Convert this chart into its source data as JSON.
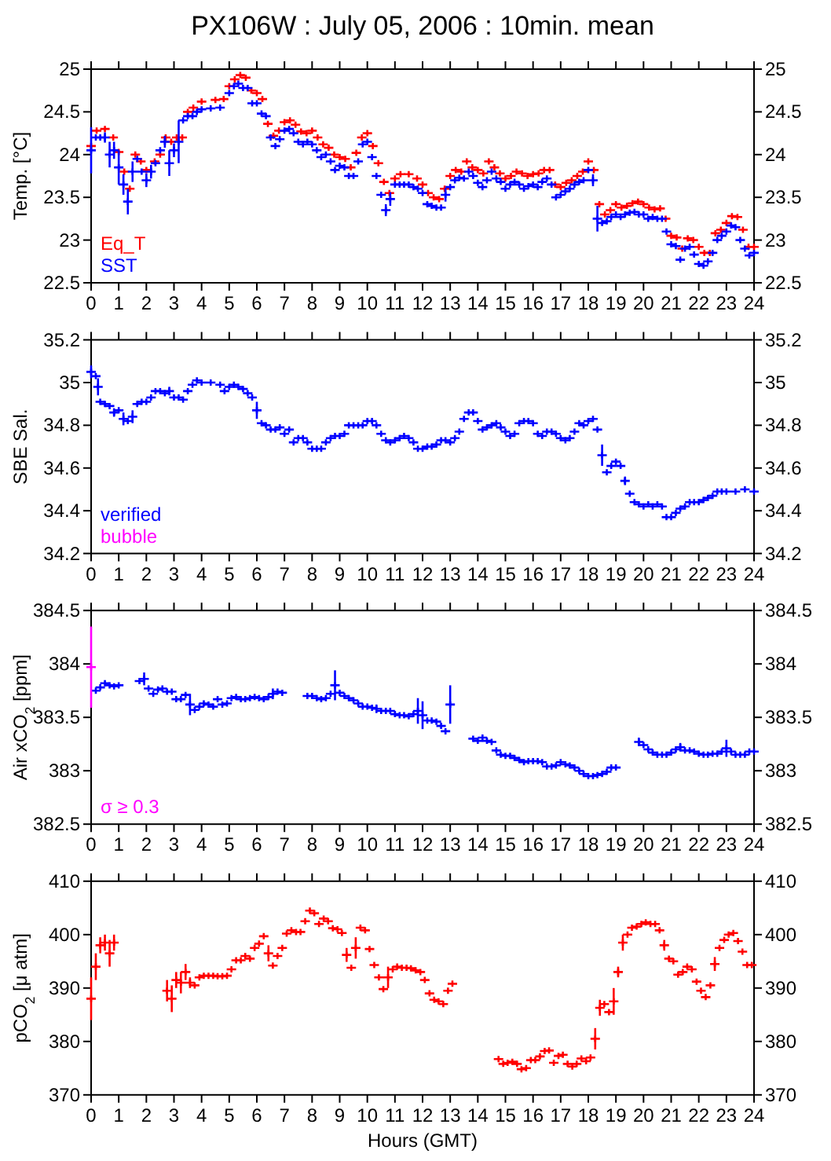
{
  "chart_data": [
    {
      "type": "scatter",
      "title": "PX106W : July 05, 2006 : 10min. mean",
      "ylabel": "Temp. [°C]",
      "xlim": [
        0,
        24
      ],
      "xticks": [
        0,
        1,
        2,
        3,
        4,
        5,
        6,
        7,
        8,
        9,
        10,
        11,
        12,
        13,
        14,
        15,
        16,
        17,
        18,
        19,
        20,
        21,
        22,
        23,
        24
      ],
      "ylim": [
        22.5,
        25
      ],
      "yticks": [
        22.5,
        23,
        23.5,
        24,
        24.5,
        25
      ],
      "y2lim": [
        22.5,
        25
      ],
      "y2ticks": [
        22.5,
        23,
        23.5,
        24,
        24.5,
        25
      ],
      "grid": false,
      "legend": "bottom left",
      "marker": "cross",
      "series": [
        {
          "name": "Eq_T",
          "color": "#ff0000",
          "x": [
            0,
            0.2,
            0.5,
            0.8,
            1,
            1.2,
            1.4,
            1.6,
            1.8,
            2,
            2.3,
            2.5,
            2.7,
            2.9,
            3.1,
            3.3,
            3.5,
            3.7,
            4,
            4.5,
            4.8,
            5,
            5.2,
            5.4,
            5.6,
            5.8,
            6,
            6.2,
            6.4,
            6.6,
            6.8,
            7,
            7.2,
            7.4,
            7.6,
            7.8,
            8,
            8.2,
            8.4,
            8.6,
            8.8,
            9,
            9.2,
            9.4,
            9.6,
            9.8,
            10,
            10.2,
            10.4,
            10.6,
            10.8,
            11,
            11.2,
            11.5,
            11.8,
            12,
            12.2,
            12.4,
            12.6,
            12.8,
            13,
            13.2,
            13.4,
            13.6,
            13.8,
            14,
            14.2,
            14.4,
            14.6,
            14.8,
            15,
            15.2,
            15.4,
            15.6,
            15.8,
            16,
            16.2,
            16.4,
            16.6,
            16.8,
            17,
            17.2,
            17.4,
            17.6,
            17.8,
            18,
            18.2,
            18.4,
            18.6,
            18.8,
            19,
            19.2,
            19.4,
            19.6,
            19.8,
            20,
            20.2,
            20.4,
            20.6,
            20.8,
            21,
            21.2,
            21.4,
            21.6,
            21.8,
            22,
            22.2,
            22.4,
            22.6,
            22.8,
            23,
            23.2,
            23.4,
            23.6,
            23.8,
            24
          ],
          "values": [
            24.1,
            24.28,
            24.3,
            24.2,
            24.03,
            23.8,
            23.6,
            24.0,
            23.92,
            23.82,
            23.92,
            24.0,
            24.2,
            24.15,
            24.2,
            24.2,
            24.5,
            24.55,
            24.62,
            24.64,
            24.65,
            24.8,
            24.88,
            24.93,
            24.9,
            24.75,
            24.72,
            24.65,
            24.36,
            24.22,
            24.28,
            24.38,
            24.4,
            24.35,
            24.27,
            24.25,
            24.28,
            24.2,
            24.12,
            24.08,
            24.0,
            23.97,
            23.95,
            23.85,
            24.02,
            24.2,
            24.25,
            24.1,
            23.9,
            23.68,
            23.55,
            23.72,
            23.77,
            23.77,
            23.72,
            23.65,
            23.55,
            23.5,
            23.48,
            23.6,
            23.75,
            23.82,
            23.8,
            23.92,
            23.85,
            23.82,
            23.78,
            23.92,
            23.85,
            23.78,
            23.72,
            23.75,
            23.8,
            23.78,
            23.75,
            23.77,
            23.78,
            23.82,
            23.82,
            23.65,
            23.62,
            23.67,
            23.7,
            23.75,
            23.8,
            23.92,
            23.82,
            23.42,
            23.3,
            23.35,
            23.42,
            23.38,
            23.4,
            23.43,
            23.45,
            23.42,
            23.38,
            23.36,
            23.37,
            23.25,
            23.05,
            23.03,
            22.9,
            23.02,
            23.0,
            22.92,
            22.85,
            22.85,
            23.08,
            23.12,
            23.2,
            23.28,
            23.27,
            23.12,
            22.92,
            22.92
          ]
        },
        {
          "name": "SST",
          "color": "#0000ff",
          "x": [
            0,
            0.17,
            0.33,
            0.5,
            0.67,
            0.83,
            1,
            1.17,
            1.33,
            1.5,
            1.67,
            1.83,
            2,
            2.17,
            2.33,
            2.5,
            2.67,
            2.83,
            3,
            3.17,
            3.33,
            3.5,
            3.67,
            3.83,
            4,
            4.33,
            4.67,
            5,
            5.17,
            5.33,
            5.5,
            5.67,
            5.83,
            6,
            6.17,
            6.33,
            6.5,
            6.67,
            6.83,
            7,
            7.17,
            7.33,
            7.5,
            7.67,
            7.83,
            8,
            8.17,
            8.33,
            8.5,
            8.67,
            8.83,
            9,
            9.17,
            9.33,
            9.5,
            9.67,
            9.83,
            10,
            10.17,
            10.33,
            10.5,
            10.67,
            10.83,
            11,
            11.17,
            11.33,
            11.5,
            11.67,
            11.83,
            12,
            12.17,
            12.33,
            12.5,
            12.67,
            12.83,
            13,
            13.17,
            13.33,
            13.5,
            13.67,
            13.83,
            14,
            14.17,
            14.33,
            14.5,
            14.67,
            14.83,
            15,
            15.17,
            15.33,
            15.5,
            15.67,
            15.83,
            16,
            16.17,
            16.33,
            16.5,
            16.67,
            16.83,
            17,
            17.17,
            17.33,
            17.5,
            17.67,
            17.83,
            18,
            18.17,
            18.33,
            18.5,
            18.67,
            18.83,
            19,
            19.17,
            19.33,
            19.5,
            19.67,
            19.83,
            20,
            20.17,
            20.33,
            20.5,
            20.67,
            20.83,
            21,
            21.17,
            21.33,
            21.5,
            21.67,
            21.83,
            22,
            22.17,
            22.33,
            22.5,
            22.67,
            22.83,
            23,
            23.17,
            23.33,
            23.5,
            23.67,
            23.83,
            24
          ],
          "values": [
            24.05,
            24.2,
            24.2,
            24.2,
            24.0,
            24.05,
            23.85,
            23.65,
            23.45,
            23.8,
            23.95,
            23.8,
            23.7,
            23.8,
            23.9,
            24.05,
            24.15,
            23.9,
            24.05,
            24.15,
            24.4,
            24.45,
            24.45,
            24.5,
            24.53,
            24.54,
            24.55,
            24.72,
            24.8,
            24.83,
            24.78,
            24.78,
            24.6,
            24.6,
            24.48,
            24.45,
            24.2,
            24.1,
            24.18,
            24.28,
            24.3,
            24.25,
            24.15,
            24.12,
            24.15,
            24.12,
            24.05,
            23.97,
            24.0,
            23.92,
            23.82,
            23.87,
            23.85,
            23.75,
            23.75,
            23.92,
            24.12,
            24.15,
            23.97,
            23.75,
            23.53,
            23.35,
            23.48,
            23.65,
            23.65,
            23.65,
            23.65,
            23.62,
            23.6,
            23.55,
            23.42,
            23.4,
            23.38,
            23.38,
            23.53,
            23.62,
            23.7,
            23.73,
            23.72,
            23.8,
            23.75,
            23.67,
            23.62,
            23.7,
            23.8,
            23.72,
            23.68,
            23.6,
            23.65,
            23.68,
            23.65,
            23.6,
            23.63,
            23.65,
            23.62,
            23.68,
            23.72,
            23.65,
            23.5,
            23.53,
            23.57,
            23.6,
            23.65,
            23.68,
            23.7,
            23.82,
            23.7,
            23.25,
            23.2,
            23.22,
            23.27,
            23.3,
            23.27,
            23.3,
            23.32,
            23.33,
            23.3,
            23.3,
            23.25,
            23.27,
            23.25,
            23.25,
            23.1,
            22.95,
            22.93,
            22.77,
            22.9,
            22.92,
            22.83,
            22.72,
            22.7,
            22.75,
            22.85,
            23.0,
            23.05,
            23.1,
            23.17,
            23.15,
            23.0,
            22.9,
            22.82,
            22.85
          ],
          "errors": [
            0.27,
            null,
            null,
            0.06,
            0.15,
            0.1,
            0.2,
            0.12,
            0.15,
            0.12,
            null,
            null,
            0.08,
            0.08,
            null,
            null,
            0.07,
            0.15,
            0.08,
            0.25,
            null,
            null,
            null,
            null,
            null,
            null,
            null,
            null,
            null,
            null,
            null,
            null,
            null,
            null,
            null,
            null,
            null,
            null,
            null,
            null,
            null,
            null,
            null,
            null,
            null,
            null,
            null,
            null,
            null,
            null,
            null,
            null,
            null,
            null,
            null,
            null,
            null,
            null,
            null,
            null,
            null,
            0.07,
            0.08,
            null,
            null,
            null,
            null,
            null,
            null,
            null,
            null,
            null,
            null,
            null,
            0.08,
            null,
            null,
            null,
            null,
            null,
            null,
            null,
            null,
            null,
            null,
            null,
            null,
            null,
            null,
            null,
            null,
            null,
            null,
            null,
            null,
            null,
            null,
            null,
            null,
            null,
            null,
            null,
            null,
            null,
            null,
            null,
            0.07,
            0.15,
            null,
            null,
            null,
            null,
            null,
            null,
            null,
            null,
            null,
            null,
            null,
            null,
            null,
            null,
            null,
            null,
            null,
            null,
            null,
            null,
            null,
            null,
            null,
            null,
            null,
            null,
            null,
            null,
            null,
            null,
            null,
            null,
            null,
            null
          ]
        }
      ]
    },
    {
      "type": "scatter",
      "ylabel": "SBE Sal.",
      "xlim": [
        0,
        24
      ],
      "xticks": [
        0,
        1,
        2,
        3,
        4,
        5,
        6,
        7,
        8,
        9,
        10,
        11,
        12,
        13,
        14,
        15,
        16,
        17,
        18,
        19,
        20,
        21,
        22,
        23,
        24
      ],
      "ylim": [
        34.2,
        35.2
      ],
      "yticks": [
        34.2,
        34.4,
        34.6,
        34.8,
        35,
        35.2
      ],
      "y2lim": [
        34.2,
        35.2
      ],
      "y2ticks": [
        34.2,
        34.4,
        34.6,
        34.8,
        35,
        35.2
      ],
      "grid": false,
      "legend": "bottom left",
      "marker": "cross",
      "series": [
        {
          "name": "verified",
          "color": "#0000ff",
          "x": [
            0,
            0.17,
            0.25,
            0.33,
            0.5,
            0.67,
            0.83,
            1,
            1.17,
            1.33,
            1.5,
            1.67,
            1.83,
            2,
            2.17,
            2.33,
            2.5,
            2.67,
            2.83,
            3,
            3.17,
            3.33,
            3.5,
            3.67,
            3.83,
            4,
            4.33,
            4.67,
            4.83,
            5,
            5.17,
            5.33,
            5.5,
            5.67,
            5.83,
            6,
            6.17,
            6.33,
            6.5,
            6.67,
            6.83,
            7,
            7.17,
            7.33,
            7.5,
            7.67,
            7.83,
            8,
            8.17,
            8.33,
            8.5,
            8.67,
            8.83,
            9,
            9.17,
            9.33,
            9.5,
            9.67,
            9.83,
            10,
            10.17,
            10.33,
            10.5,
            10.67,
            10.83,
            11,
            11.17,
            11.33,
            11.5,
            11.67,
            11.83,
            12,
            12.17,
            12.33,
            12.5,
            12.67,
            12.83,
            13,
            13.17,
            13.33,
            13.5,
            13.67,
            13.83,
            14,
            14.17,
            14.33,
            14.5,
            14.67,
            14.83,
            15,
            15.17,
            15.33,
            15.5,
            15.67,
            15.83,
            16,
            16.17,
            16.33,
            16.5,
            16.67,
            16.83,
            17,
            17.17,
            17.33,
            17.5,
            17.67,
            17.83,
            18,
            18.17,
            18.33,
            18.5,
            18.67,
            18.83,
            19,
            19.17,
            19.33,
            19.5,
            19.67,
            19.83,
            20,
            20.17,
            20.33,
            20.5,
            20.67,
            20.83,
            21,
            21.17,
            21.33,
            21.5,
            21.67,
            21.83,
            22,
            22.17,
            22.33,
            22.5,
            22.67,
            22.83,
            23,
            23.33,
            23.67,
            24
          ],
          "values": [
            35.05,
            35.03,
            34.98,
            34.91,
            34.9,
            34.89,
            34.86,
            34.87,
            34.83,
            34.82,
            34.84,
            34.9,
            34.91,
            34.91,
            34.93,
            34.96,
            34.96,
            34.95,
            34.96,
            34.93,
            34.93,
            34.92,
            34.96,
            34.99,
            35.01,
            35.0,
            35.0,
            34.99,
            34.96,
            34.98,
            34.99,
            34.98,
            34.97,
            34.95,
            34.93,
            34.87,
            34.81,
            34.8,
            34.78,
            34.78,
            34.79,
            34.76,
            34.78,
            34.72,
            34.74,
            34.74,
            34.72,
            34.69,
            34.69,
            34.69,
            34.72,
            34.74,
            34.75,
            34.75,
            34.76,
            34.8,
            34.8,
            34.8,
            34.8,
            34.82,
            34.82,
            34.8,
            34.76,
            34.73,
            34.72,
            34.73,
            34.74,
            34.75,
            34.74,
            34.72,
            34.69,
            34.69,
            34.7,
            34.7,
            34.71,
            34.73,
            34.73,
            34.72,
            34.74,
            34.77,
            34.83,
            34.86,
            34.86,
            34.82,
            34.78,
            34.79,
            34.8,
            34.81,
            34.79,
            34.77,
            34.75,
            34.76,
            34.81,
            34.82,
            34.82,
            34.81,
            34.76,
            34.75,
            34.77,
            34.77,
            34.76,
            34.74,
            34.73,
            34.74,
            34.77,
            34.81,
            34.8,
            34.82,
            34.83,
            34.78,
            34.66,
            34.58,
            34.61,
            34.63,
            34.61,
            34.54,
            34.48,
            34.44,
            34.43,
            34.42,
            34.43,
            34.42,
            34.43,
            34.42,
            34.37,
            34.37,
            34.39,
            34.41,
            34.42,
            34.44,
            34.44,
            34.44,
            34.45,
            34.46,
            34.47,
            34.49,
            34.49,
            34.49,
            34.49,
            34.5,
            34.49
          ],
          "errors": [
            0.03,
            null,
            0.04,
            null,
            null,
            null,
            0.02,
            null,
            0.03,
            null,
            0.03,
            null,
            null,
            null,
            null,
            null,
            null,
            null,
            0.02,
            null,
            null,
            null,
            null,
            null,
            null,
            null,
            null,
            null,
            null,
            null,
            null,
            null,
            null,
            null,
            null,
            0.04,
            null,
            null,
            null,
            null,
            null,
            null,
            null,
            null,
            null,
            null,
            null,
            null,
            null,
            null,
            null,
            null,
            null,
            null,
            null,
            null,
            null,
            null,
            null,
            null,
            null,
            null,
            null,
            null,
            null,
            null,
            null,
            null,
            null,
            null,
            null,
            null,
            null,
            null,
            null,
            null,
            null,
            null,
            null,
            null,
            null,
            null,
            null,
            null,
            null,
            null,
            null,
            null,
            null,
            null,
            null,
            null,
            null,
            null,
            null,
            null,
            null,
            null,
            null,
            null,
            null,
            null,
            null,
            null,
            null,
            null,
            null,
            null,
            null,
            null,
            0.05,
            null,
            null,
            null,
            null,
            0.02,
            null,
            null,
            null,
            null,
            null,
            null,
            null,
            null,
            null,
            null,
            null,
            null,
            null,
            null,
            null,
            null,
            null,
            null,
            null,
            null,
            null,
            null,
            null,
            null,
            null
          ]
        },
        {
          "name": "bubble",
          "color": "#ff00ff"
        }
      ]
    },
    {
      "type": "scatter",
      "ylabel": "Air xCO$_{2}$ [ppm]",
      "xlim": [
        0,
        24
      ],
      "xticks": [
        0,
        1,
        2,
        3,
        4,
        5,
        6,
        7,
        8,
        9,
        10,
        11,
        12,
        13,
        14,
        15,
        16,
        17,
        18,
        19,
        20,
        21,
        22,
        23,
        24
      ],
      "ylim": [
        382.5,
        384.5
      ],
      "yticks": [
        382.5,
        383,
        383.5,
        384,
        384.5
      ],
      "y2lim": [
        382.5,
        384.5
      ],
      "y2ticks": [
        382.5,
        383,
        383.5,
        384,
        384.5
      ],
      "grid": false,
      "legend": "bottom left",
      "marker": "cross",
      "series": [
        {
          "color": "#0000ff",
          "x": [
            0.17,
            0.33,
            0.5,
            0.67,
            0.83,
            1,
            1.75,
            1.92,
            2.08,
            2.25,
            2.42,
            2.58,
            2.75,
            2.92,
            3.08,
            3.25,
            3.42,
            3.58,
            3.75,
            3.92,
            4.08,
            4.25,
            4.42,
            4.58,
            4.75,
            4.92,
            5.08,
            5.25,
            5.42,
            5.58,
            5.75,
            5.92,
            6.08,
            6.25,
            6.42,
            6.58,
            6.75,
            6.92,
            7.83,
            8,
            8.17,
            8.33,
            8.5,
            8.67,
            8.83,
            9,
            9.17,
            9.33,
            9.5,
            9.67,
            9.83,
            10,
            10.17,
            10.33,
            10.5,
            10.67,
            10.83,
            11,
            11.17,
            11.33,
            11.5,
            11.67,
            11.83,
            12,
            12.17,
            12.33,
            12.5,
            12.67,
            12.83,
            13,
            13.83,
            14,
            14.17,
            14.33,
            14.5,
            14.67,
            14.83,
            15,
            15.17,
            15.33,
            15.5,
            15.67,
            15.83,
            16,
            16.17,
            16.33,
            16.5,
            16.67,
            16.83,
            17,
            17.17,
            17.33,
            17.5,
            17.67,
            17.83,
            18,
            18.17,
            18.33,
            18.5,
            18.67,
            18.83,
            19,
            19.83,
            20,
            20.17,
            20.33,
            20.5,
            20.67,
            20.83,
            21,
            21.17,
            21.33,
            21.5,
            21.67,
            21.83,
            22,
            22.17,
            22.33,
            22.5,
            22.67,
            22.83,
            23,
            23.17,
            23.33,
            23.5,
            23.67,
            23.83,
            24
          ],
          "values": [
            383.75,
            383.78,
            383.82,
            383.8,
            383.79,
            383.8,
            383.84,
            383.86,
            383.77,
            383.72,
            383.76,
            383.77,
            383.74,
            383.74,
            383.67,
            383.67,
            383.71,
            383.62,
            383.57,
            383.6,
            383.63,
            383.62,
            383.6,
            383.67,
            383.62,
            383.63,
            383.68,
            383.69,
            383.67,
            383.67,
            383.68,
            383.69,
            383.68,
            383.67,
            383.69,
            383.72,
            383.74,
            383.73,
            383.7,
            383.7,
            383.68,
            383.67,
            383.68,
            383.72,
            383.8,
            383.73,
            383.7,
            383.68,
            383.66,
            383.63,
            383.6,
            383.6,
            383.59,
            383.58,
            383.56,
            383.56,
            383.56,
            383.53,
            383.52,
            383.52,
            383.51,
            383.53,
            383.56,
            383.52,
            383.47,
            383.47,
            383.46,
            383.42,
            383.37,
            383.62,
            383.3,
            383.28,
            383.31,
            383.28,
            383.27,
            383.19,
            383.15,
            383.14,
            383.14,
            383.12,
            383.1,
            383.08,
            383.09,
            383.09,
            383.09,
            383.08,
            383.04,
            383.04,
            383.05,
            383.08,
            383.06,
            383.05,
            383.03,
            383.0,
            382.97,
            382.95,
            382.95,
            382.96,
            382.97,
            382.99,
            383.03,
            383.03,
            383.27,
            383.24,
            383.2,
            383.17,
            383.15,
            383.15,
            383.15,
            383.17,
            383.2,
            383.22,
            383.19,
            383.19,
            383.18,
            383.16,
            383.15,
            383.15,
            383.16,
            383.16,
            383.18,
            383.21,
            383.18,
            383.15,
            383.15,
            383.15,
            383.18,
            383.18
          ],
          "errors": [
            null,
            null,
            null,
            null,
            null,
            null,
            null,
            0.06,
            null,
            null,
            null,
            null,
            null,
            null,
            null,
            null,
            null,
            0.1,
            null,
            null,
            null,
            null,
            null,
            null,
            null,
            null,
            null,
            null,
            null,
            null,
            null,
            null,
            null,
            null,
            null,
            0.05,
            null,
            null,
            null,
            null,
            null,
            null,
            null,
            null,
            0.14,
            null,
            null,
            null,
            null,
            null,
            null,
            null,
            null,
            0.04,
            null,
            null,
            null,
            null,
            null,
            null,
            null,
            null,
            0.12,
            0.13,
            null,
            null,
            null,
            null,
            null,
            0.18,
            null,
            null,
            null,
            null,
            null,
            null,
            null,
            null,
            null,
            null,
            null,
            null,
            null,
            null,
            null,
            null,
            null,
            null,
            null,
            null,
            null,
            null,
            null,
            null,
            null,
            null,
            null,
            null,
            null,
            null,
            null,
            null,
            0.04,
            null,
            null,
            null,
            null,
            null,
            null,
            null,
            null,
            0.04,
            null,
            null,
            null,
            null,
            null,
            null,
            null,
            null,
            null,
            0.08,
            null,
            null,
            null,
            null,
            null,
            null
          ]
        },
        {
          "name": "σ ≥ 0.3",
          "color": "#ff00ff",
          "x": [
            0
          ],
          "values": [
            383.97
          ],
          "errors": [
            0.38
          ]
        }
      ]
    },
    {
      "type": "scatter",
      "ylabel": "pCO$_{2}$ [μ atm]",
      "xlabel": "Hours (GMT)",
      "xlim": [
        0,
        24
      ],
      "xticks": [
        0,
        1,
        2,
        3,
        4,
        5,
        6,
        7,
        8,
        9,
        10,
        11,
        12,
        13,
        14,
        15,
        16,
        17,
        18,
        19,
        20,
        21,
        22,
        23,
        24
      ],
      "ylim": [
        370,
        410
      ],
      "yticks": [
        370,
        380,
        390,
        400,
        410
      ],
      "y2lim": [
        370,
        410
      ],
      "y2ticks": [
        370,
        380,
        390,
        400,
        410
      ],
      "grid": false,
      "marker": "cross",
      "series": [
        {
          "color": "#ff0000",
          "x": [
            0,
            0.17,
            0.33,
            0.5,
            0.67,
            0.83,
            2.75,
            2.92,
            3.08,
            3.25,
            3.42,
            3.58,
            3.75,
            3.92,
            4.08,
            4.25,
            4.42,
            4.58,
            4.75,
            4.92,
            5.08,
            5.25,
            5.42,
            5.58,
            5.75,
            5.92,
            6.08,
            6.25,
            6.42,
            6.58,
            6.75,
            6.92,
            7.08,
            7.25,
            7.42,
            7.58,
            7.75,
            7.92,
            8.08,
            8.25,
            8.42,
            8.58,
            8.75,
            8.92,
            9.08,
            9.25,
            9.42,
            9.58,
            9.75,
            9.92,
            10.08,
            10.25,
            10.42,
            10.58,
            10.75,
            10.92,
            11.08,
            11.25,
            11.42,
            11.58,
            11.75,
            11.92,
            12.08,
            12.25,
            12.42,
            12.58,
            12.75,
            12.92,
            13.08,
            14.75,
            14.92,
            15.08,
            15.25,
            15.42,
            15.58,
            15.75,
            15.92,
            16.08,
            16.25,
            16.42,
            16.58,
            16.75,
            16.92,
            17.08,
            17.25,
            17.42,
            17.58,
            17.75,
            17.92,
            18.08,
            18.25,
            18.42,
            18.58,
            18.75,
            18.92,
            19.08,
            19.25,
            19.42,
            19.58,
            19.75,
            19.92,
            20.08,
            20.25,
            20.42,
            20.58,
            20.75,
            20.92,
            21.08,
            21.25,
            21.42,
            21.58,
            21.75,
            21.92,
            22.08,
            22.25,
            22.42,
            22.58,
            22.75,
            22.92,
            23.08,
            23.25,
            23.42,
            23.58,
            23.75,
            23.92
          ],
          "values": [
            388,
            394,
            398,
            398.5,
            396.5,
            398.5,
            389.5,
            388,
            391.5,
            391,
            393,
            391,
            390.5,
            392,
            392.3,
            392.3,
            392.3,
            392.2,
            392.2,
            392.3,
            393.5,
            395.2,
            395.2,
            396,
            395.5,
            397.5,
            398.3,
            399.7,
            396.5,
            394.2,
            396,
            397.5,
            400.2,
            400.8,
            400.5,
            400.5,
            402.5,
            404.5,
            404,
            402,
            403,
            402.5,
            401.2,
            401,
            400.3,
            396.2,
            393.8,
            397.5,
            401.3,
            400.8,
            397.3,
            394.3,
            392,
            389.8,
            392,
            393.5,
            394,
            393.8,
            393.8,
            393.7,
            393.3,
            393,
            391.5,
            389,
            387.8,
            387.5,
            387,
            389.5,
            390.8,
            376.7,
            375.8,
            376,
            376.2,
            375.8,
            374.8,
            375,
            376.5,
            376.5,
            377.2,
            378.2,
            378.3,
            376,
            377.3,
            377.5,
            375.8,
            375.3,
            375.8,
            376.8,
            376.3,
            377,
            380.5,
            386.3,
            387,
            385.5,
            387.5,
            393,
            398.5,
            400,
            401.3,
            401.5,
            402,
            402.3,
            402,
            402,
            400.8,
            398,
            395.5,
            395,
            392.5,
            393,
            394,
            393.5,
            391.2,
            389.5,
            388.3,
            390.5,
            394.5,
            397.5,
            399,
            400,
            400.3,
            398.8,
            396.8,
            394.3,
            394.3
          ],
          "errors": [
            4,
            2.5,
            1.5,
            1.5,
            2.5,
            1.5,
            2,
            2.5,
            1.5,
            2,
            1.5,
            1,
            null,
            null,
            null,
            null,
            null,
            null,
            null,
            null,
            null,
            null,
            null,
            null,
            null,
            null,
            null,
            null,
            1.5,
            null,
            null,
            null,
            null,
            null,
            null,
            null,
            null,
            null,
            null,
            null,
            null,
            null,
            null,
            null,
            null,
            1.3,
            null,
            2,
            null,
            null,
            null,
            null,
            null,
            null,
            2,
            null,
            null,
            null,
            null,
            null,
            null,
            null,
            null,
            null,
            null,
            null,
            null,
            null,
            null,
            null,
            null,
            null,
            null,
            null,
            null,
            null,
            null,
            null,
            null,
            null,
            null,
            null,
            null,
            null,
            null,
            null,
            null,
            null,
            null,
            null,
            2,
            1.5,
            null,
            null,
            2.5,
            1,
            1.5,
            null,
            null,
            null,
            null,
            null,
            null,
            null,
            null,
            1,
            null,
            null,
            null,
            null,
            null,
            null,
            null,
            null,
            null,
            null,
            1.3,
            null,
            null,
            null,
            null,
            null,
            null,
            null,
            null
          ]
        }
      ]
    }
  ]
}
